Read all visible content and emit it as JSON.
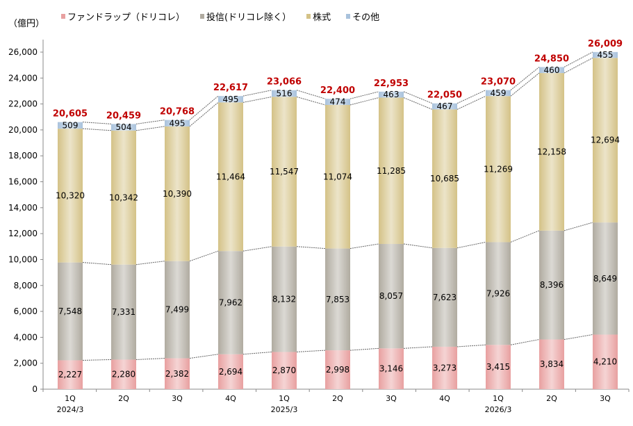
{
  "chart_data": {
    "type": "bar",
    "stacked": true,
    "unit_label": "（億円）",
    "categories": [
      "1Q",
      "2Q",
      "3Q",
      "4Q",
      "1Q",
      "2Q",
      "3Q",
      "4Q",
      "1Q",
      "2Q",
      "3Q"
    ],
    "year_labels": [
      "2024/3",
      "",
      "",
      "",
      "2025/3",
      "",
      "",
      "",
      "2026/3",
      "",
      ""
    ],
    "series": [
      {
        "name": "ファンドラップ（ドリコレ）",
        "color": "#e8a0a0",
        "values": [
          2227,
          2280,
          2382,
          2694,
          2870,
          2998,
          3146,
          3273,
          3415,
          3834,
          4210
        ]
      },
      {
        "name": "投信(ドリコレ除く）",
        "color": "#b0aba0",
        "values": [
          7548,
          7331,
          7499,
          7962,
          8132,
          7853,
          8057,
          7623,
          7926,
          8396,
          8649
        ]
      },
      {
        "name": "株式",
        "color": "#d4c287",
        "values": [
          10320,
          10342,
          10390,
          11464,
          11547,
          11074,
          11285,
          10685,
          11269,
          12158,
          12694
        ]
      },
      {
        "name": "その他",
        "color": "#a9c2dc",
        "values": [
          509,
          504,
          495,
          495,
          516,
          474,
          463,
          467,
          459,
          460,
          455
        ]
      }
    ],
    "totals": [
      20605,
      20459,
      20768,
      22617,
      23066,
      22400,
      22953,
      22050,
      23070,
      24850,
      26009
    ],
    "total_color": "#c00000",
    "ylim": [
      0,
      26000
    ],
    "yticks": [
      0,
      2000,
      4000,
      6000,
      8000,
      10000,
      12000,
      14000,
      16000,
      18000,
      20000,
      22000,
      24000,
      26000
    ],
    "legend": "top",
    "grid": false
  }
}
